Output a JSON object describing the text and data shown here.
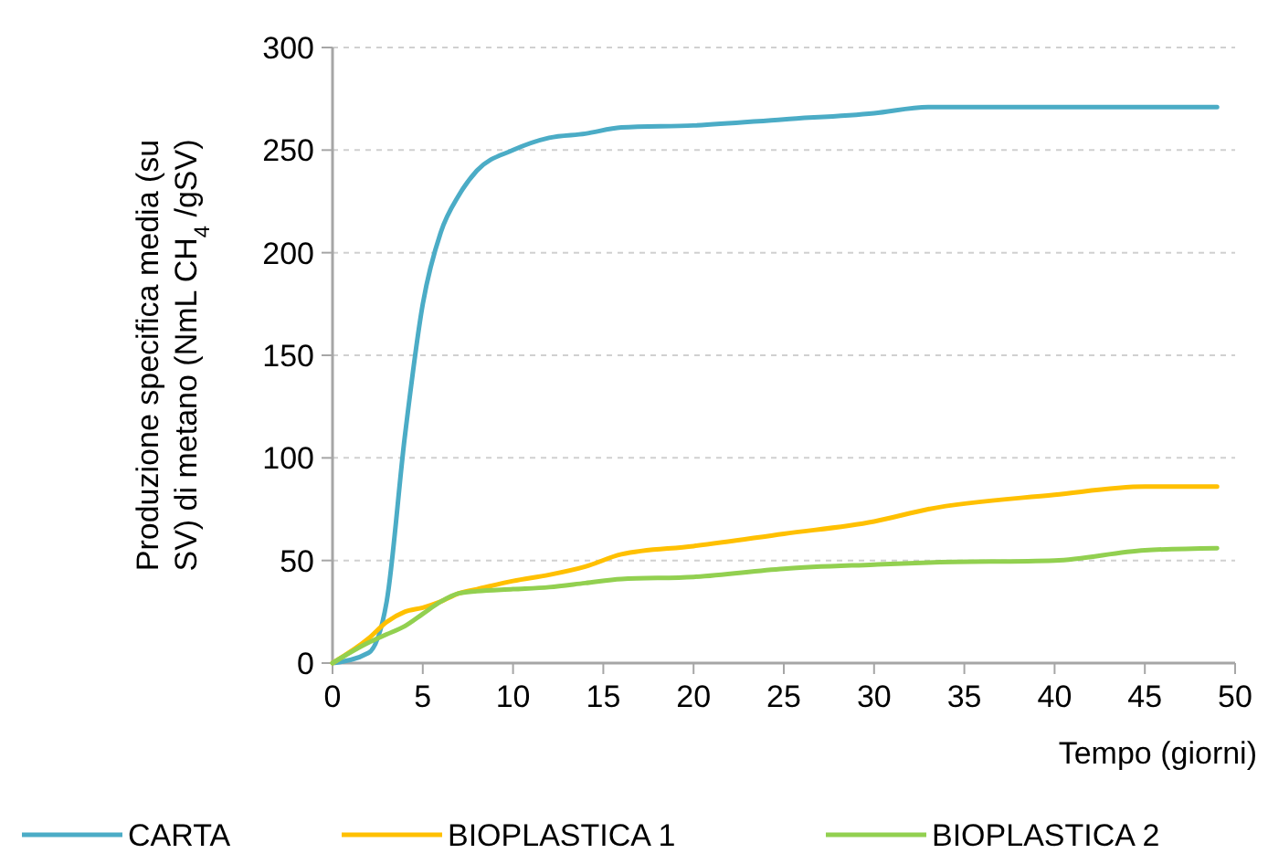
{
  "chart_data": {
    "type": "line",
    "xlabel": "Tempo (giorni)",
    "ylabel": "Produzione specifica media (su SV) di metano (NmL CH$_{4}$ /gSV)",
    "xlim": [
      0,
      50
    ],
    "xticks": [
      0,
      5,
      10,
      15,
      20,
      25,
      30,
      35,
      40,
      45,
      50
    ],
    "ylim": [
      0,
      300
    ],
    "yticks": [
      0,
      50,
      100,
      150,
      200,
      250,
      300
    ],
    "grid": "y",
    "legend": "bottom",
    "marker": "none",
    "line_style": "solid",
    "series": [
      {
        "name": "CARTA",
        "color": "#4bacc6",
        "x": [
          0,
          2,
          3,
          4,
          5,
          6,
          7,
          8,
          10,
          12,
          14,
          16,
          20,
          25,
          30,
          33,
          40,
          49
        ],
        "values": [
          0,
          5,
          30,
          110,
          175,
          210,
          228,
          240,
          250,
          256,
          258,
          261,
          262,
          265,
          268,
          271,
          271,
          271
        ]
      },
      {
        "name": "BIOPLASTICA 1",
        "color": "#ffc000",
        "x": [
          0,
          2,
          3,
          4,
          5,
          6,
          7,
          8,
          10,
          12,
          14,
          16,
          20,
          25,
          30,
          33,
          40,
          45,
          49
        ],
        "values": [
          0,
          12,
          20,
          25,
          27,
          30,
          34,
          36,
          40,
          43,
          47,
          53,
          57,
          63,
          69,
          75,
          82,
          86,
          86
        ]
      },
      {
        "name": "BIOPLASTICA 2",
        "color": "#92d050",
        "x": [
          0,
          2,
          3,
          4,
          5,
          6,
          7,
          8,
          10,
          12,
          14,
          16,
          20,
          25,
          30,
          33,
          40,
          45,
          49
        ],
        "values": [
          0,
          10,
          14,
          18,
          24,
          30,
          34,
          35,
          36,
          37,
          39,
          41,
          42,
          46,
          48,
          49,
          50,
          55,
          56
        ]
      }
    ]
  }
}
